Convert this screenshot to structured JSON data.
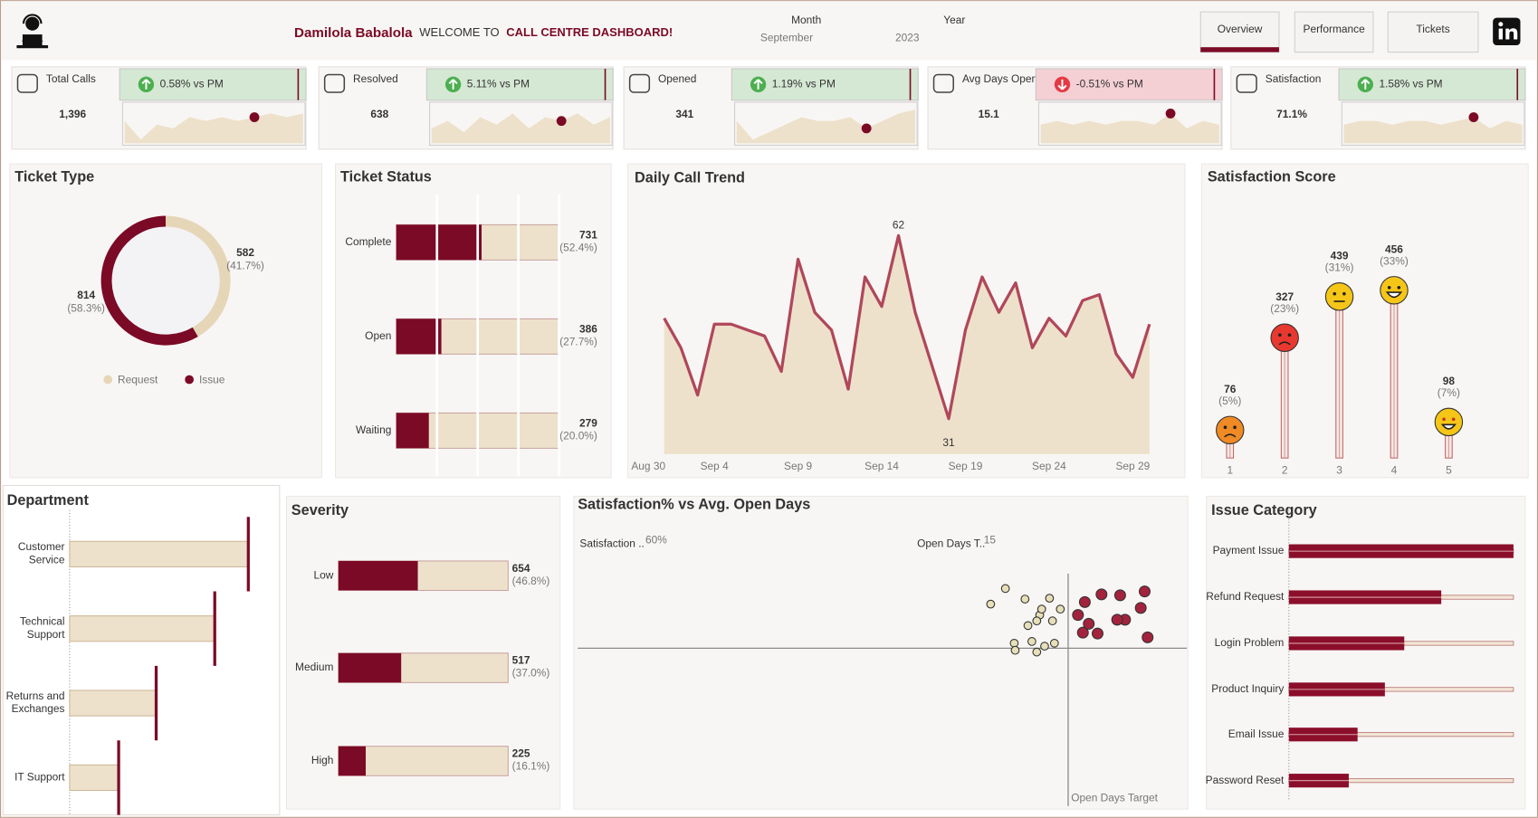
{
  "header": {
    "name": "Damilola Babalola",
    "welcome": "WELCOME TO",
    "dashboard": "CALL CENTRE DASHBOARD!",
    "month_label": "Month",
    "month": "September",
    "year_label": "Year",
    "year": "2023",
    "tabs": [
      "Overview",
      "Performance",
      "Tickets"
    ],
    "active_tab": 0
  },
  "kpis": [
    {
      "label": "Total Calls",
      "value": "1,396",
      "change": "0.58% vs PM",
      "direction": "up",
      "trend": [
        6,
        1,
        5,
        4,
        7,
        6,
        7,
        6,
        7,
        8,
        7,
        8
      ],
      "highlight": 8,
      "ylim": [
        0,
        10
      ]
    },
    {
      "label": "Resolved",
      "value": "638",
      "change": "5.11% vs PM",
      "direction": "up",
      "trend": [
        4,
        6,
        3,
        7,
        5,
        8,
        4,
        7,
        6,
        8,
        5,
        7
      ],
      "highlight": 8,
      "ylim": [
        0,
        10
      ]
    },
    {
      "label": "Opened",
      "value": "341",
      "change": "1.19% vs PM",
      "direction": "up",
      "trend": [
        6,
        1,
        3,
        5,
        7,
        6,
        6,
        7,
        4,
        6,
        8,
        9
      ],
      "highlight": 8,
      "ylim": [
        0,
        10
      ]
    },
    {
      "label": "Avg Days Open",
      "value": "15.1",
      "change": "-0.51% vs PM",
      "direction": "down",
      "trend": [
        5,
        6,
        5,
        6,
        5,
        6,
        6,
        5,
        8,
        4,
        6,
        5
      ],
      "highlight": 8,
      "ylim": [
        0,
        10
      ]
    },
    {
      "label": "Satisfaction",
      "value": "71.1%",
      "change": "1.58% vs PM",
      "direction": "up",
      "trend": [
        5,
        6,
        6,
        5,
        6,
        6,
        5,
        6,
        7,
        4,
        6,
        5
      ],
      "highlight": 8,
      "ylim": [
        0,
        10
      ]
    }
  ],
  "chart_data": [
    {
      "type": "donut",
      "title": "Ticket Type",
      "categories": [
        "Request",
        "Issue"
      ],
      "values": [
        582,
        814
      ],
      "shares": [
        41.7,
        58.3
      ],
      "share_labels": [
        "(41.7%)",
        "(58.3%)"
      ],
      "colors": [
        "#e6d6b8",
        "#7b0a26"
      ],
      "legend": "bottom"
    },
    {
      "type": "progress-bar",
      "title": "Ticket Status",
      "categories": [
        "Complete",
        "Open",
        "Waiting"
      ],
      "values": [
        52.4,
        27.7,
        20.0
      ],
      "value_labels": [
        "(52.4%)",
        "(27.7%)",
        "(20.0%)"
      ],
      "counts": [
        731,
        386,
        279
      ],
      "xlim": [
        0,
        100
      ],
      "xticks": [
        25,
        50,
        75,
        100
      ],
      "grid": true,
      "color": "#7b0a26",
      "track_color": "#ede1cb"
    },
    {
      "type": "area",
      "title": "Daily Call Trend",
      "x": [
        1,
        2,
        3,
        4,
        5,
        6,
        7,
        8,
        9,
        10,
        11,
        12,
        13,
        14,
        15,
        16,
        17,
        18,
        19,
        20,
        21,
        22,
        23,
        24,
        25,
        26,
        27,
        28,
        29,
        30
      ],
      "values": [
        48,
        43,
        35,
        47,
        47,
        46,
        45,
        39,
        58,
        49,
        46,
        36,
        55,
        50,
        62,
        49,
        40,
        31,
        46,
        55,
        49,
        54,
        43,
        48,
        45,
        51,
        52,
        42,
        38,
        47
      ],
      "xlim": [
        -1,
        31
      ],
      "xticks": [
        {
          "value": -1,
          "label": "Aug 30"
        },
        {
          "value": 4,
          "label": "Sep 4"
        },
        {
          "value": 9,
          "label": "Sep 9"
        },
        {
          "value": 14,
          "label": "Sep 14"
        },
        {
          "value": 19,
          "label": "Sep 19"
        },
        {
          "value": 24,
          "label": "Sep 24"
        },
        {
          "value": 29,
          "label": "Sep 29"
        }
      ],
      "ylim": [
        25,
        68
      ],
      "color": "#b0475a",
      "fill": "#ede1cb",
      "annotate": [
        "max",
        "min"
      ]
    },
    {
      "type": "lollipop",
      "title": "Satisfaction Score",
      "categories": [
        "1",
        "2",
        "3",
        "4",
        "5"
      ],
      "values": [
        76,
        327,
        439,
        456,
        98
      ],
      "shares": [
        5,
        23,
        31,
        33,
        7
      ],
      "share_labels": [
        "(5%)",
        "(23%)",
        "(31%)",
        "(33%)",
        "(7%)"
      ],
      "ylim": [
        0,
        725
      ],
      "marker_colors": [
        "#f08a24",
        "#e8382f",
        "#f5c518",
        "#f5c518",
        "#f5c518"
      ]
    },
    {
      "type": "bar",
      "style": "cap",
      "title": "Department",
      "categories": [
        "Customer Service",
        "Technical Support",
        "Returns and Exchanges",
        "IT Support"
      ],
      "values": [
        543,
        441,
        263,
        149
      ],
      "xlim": [
        0,
        626
      ],
      "color": "#7b0a26",
      "track_color": "#ede1cb"
    },
    {
      "type": "progress-bar",
      "title": "Severity",
      "categories": [
        "Low",
        "Medium",
        "High"
      ],
      "values": [
        46.8,
        37.0,
        16.1
      ],
      "value_labels": [
        "(46.8%)",
        "(37.0%)",
        "(16.1%)"
      ],
      "counts": [
        654,
        517,
        225
      ],
      "xlim": [
        0,
        100
      ],
      "grid": false,
      "color": "#7b0a26",
      "track_color": "#ede1cb"
    },
    {
      "type": "scatter",
      "title": "Satisfaction% vs Avg. Open Days",
      "xlim": [
        0,
        18.63
      ],
      "ylim": [
        7,
        92
      ],
      "series": [
        {
          "color": "#e6dfb8",
          "x": [
            12.63,
            13.08,
            13.68,
            14.13,
            14.43,
            14.19,
            14.04,
            13.77,
            14.52,
            14.76,
            13.35,
            13.89,
            14.58,
            14.28,
            13.38,
            14.04
          ],
          "values": [
            75,
            80.3,
            76.7,
            71.3,
            77,
            73.3,
            69.3,
            67.7,
            69.3,
            73.3,
            61.7,
            62.3,
            61.7,
            60.7,
            59.3,
            58.7
          ]
        },
        {
          "color": "#a3233d",
          "x": [
            15.51,
            16.02,
            16.59,
            17.34,
            15.3,
            15.63,
            16.74,
            17.22,
            16.5,
            15.45,
            15.9,
            17.43
          ],
          "values": [
            75.7,
            78.3,
            78,
            79.3,
            71.3,
            68.3,
            69.7,
            73.7,
            69.7,
            65.3,
            65,
            63.7
          ]
        }
      ],
      "reference_lines": [
        {
          "axis": "y",
          "label": "Satisfaction ..",
          "value": 60,
          "value_label": "60%"
        },
        {
          "axis": "x",
          "label": "Open Days T..",
          "value": 15,
          "value_label": "15"
        }
      ],
      "annotation": "Open Days Target"
    },
    {
      "type": "bar",
      "style": "track",
      "title": "Issue Category",
      "categories": [
        "Payment Issue",
        "Refund Request",
        "Login Problem",
        "Product Inquiry",
        "Email Issue",
        "Password Reset"
      ],
      "values": [
        255,
        173,
        131,
        109,
        78,
        68
      ],
      "xlim": [
        0,
        255
      ],
      "color": "#8b0f2a",
      "track_color": "#f3e6d6"
    }
  ]
}
